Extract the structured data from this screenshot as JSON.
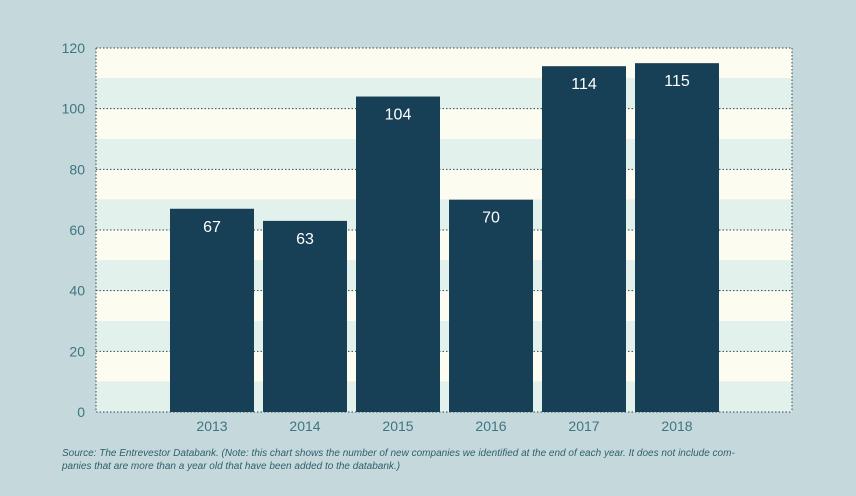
{
  "chart_data": {
    "type": "bar",
    "title": "",
    "xlabel": "",
    "ylabel": "",
    "categories": [
      "2013",
      "2014",
      "2015",
      "2016",
      "2017",
      "2018"
    ],
    "values": [
      67,
      63,
      104,
      70,
      114,
      115
    ],
    "data_labels": [
      "67",
      "63",
      "104",
      "70",
      "114",
      "115"
    ],
    "ylim": [
      0,
      120
    ],
    "yticks": [
      0,
      20,
      40,
      60,
      80,
      100,
      120
    ],
    "grid": true,
    "legend": "none",
    "colors": {
      "bar": "#173f55",
      "bar_label": "#ffffff",
      "band_light": "#fdfcf0",
      "band_tint": "#e3f1ec",
      "grid": "#2c4b56",
      "axis_text": "#3f7580",
      "background": "#c5d9dc"
    }
  },
  "source": "Source: The Entrevestor Databank. (Note: this chart shows the number of new companies we identified at the end of each year. It does not include com-panies that are more than a year old that have been added to the databank.)"
}
